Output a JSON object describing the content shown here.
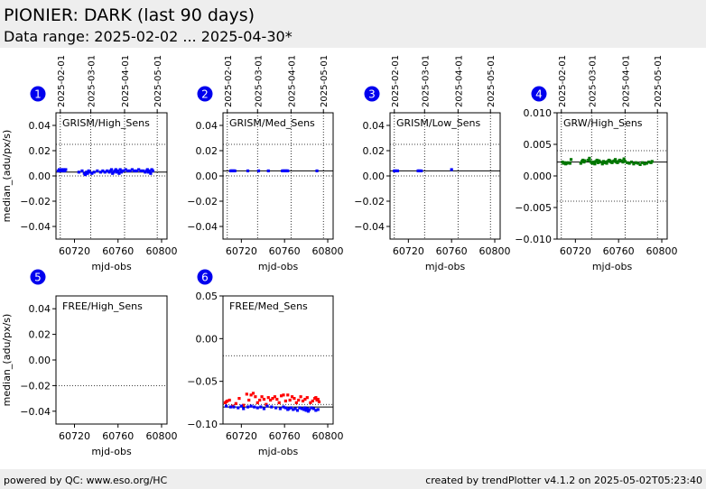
{
  "header": {
    "title": "PIONIER: DARK (last 90 days)",
    "subtitle": "Data range: 2025-02-02 ... 2025-04-30*"
  },
  "footer": {
    "left": "powered by QC: www.eso.org/HC",
    "right": "created by trendPlotter v4.1.2 on 2025-05-02T05:23:40"
  },
  "colors": {
    "badge": "#0000ee",
    "blue": "#0000ff",
    "green": "#007700",
    "red": "#ff0000",
    "header_bg": "#eeeeee"
  },
  "chart_data": [
    {
      "type": "scatter",
      "id": 1,
      "label": "GRISM/High_Sens",
      "xlabel": "mjd-obs",
      "ylabel": "median_(adu/px/s)",
      "xlim": [
        60703,
        60805
      ],
      "ylim": [
        -0.05,
        0.05
      ],
      "xticks": [
        60720,
        60760,
        60800
      ],
      "xtick_labels": [
        "60720",
        "60760",
        "60800"
      ],
      "yticks": [
        0.04,
        0.02,
        0.0,
        -0.02,
        -0.04
      ],
      "ytick_labels": [
        "0.04",
        "0.02",
        "0.00",
        "−0.02",
        "−0.04"
      ],
      "date_ticks": [
        "2025-02-01",
        "2025-03-01",
        "2025-04-01",
        "2025-05-01"
      ],
      "date_mjd": [
        60707,
        60735,
        60766,
        60796
      ],
      "ref_line": 0.003,
      "dotted_lines": [
        0.025,
        0.0
      ],
      "series": [
        {
          "color": "blue",
          "x": [
            60705,
            60706,
            60707,
            60708,
            60709,
            60710,
            60711,
            60712,
            60724,
            60727,
            60729,
            60730,
            60731,
            60732,
            60733,
            60734,
            60736,
            60738,
            60741,
            60744,
            60746,
            60748,
            60750,
            60752,
            60753,
            60754,
            60755,
            60756,
            60757,
            60758,
            60759,
            60760,
            60761,
            60762,
            60763,
            60764,
            60765,
            60767,
            60769,
            60771,
            60773,
            60775,
            60777,
            60779,
            60781,
            60783,
            60785,
            60786,
            60787,
            60788,
            60789,
            60790,
            60791,
            60792
          ],
          "y": [
            0.004,
            0.005,
            0.004,
            0.005,
            0.004,
            0.005,
            0.004,
            0.005,
            0.003,
            0.004,
            0.002,
            0.001,
            0.003,
            0.002,
            0.004,
            0.003,
            0.002,
            0.003,
            0.004,
            0.003,
            0.004,
            0.003,
            0.004,
            0.003,
            0.004,
            0.005,
            0.002,
            0.003,
            0.004,
            0.005,
            0.003,
            0.004,
            0.002,
            0.005,
            0.003,
            0.004,
            0.004,
            0.005,
            0.004,
            0.004,
            0.005,
            0.004,
            0.004,
            0.005,
            0.004,
            0.004,
            0.003,
            0.004,
            0.005,
            0.003,
            0.004,
            0.002,
            0.005,
            0.004
          ]
        }
      ]
    },
    {
      "type": "scatter",
      "id": 2,
      "label": "GRISM/Med_Sens",
      "xlabel": "mjd-obs",
      "ylabel": "",
      "xlim": [
        60703,
        60805
      ],
      "ylim": [
        -0.05,
        0.05
      ],
      "xticks": [
        60720,
        60760,
        60800
      ],
      "xtick_labels": [
        "60720",
        "60760",
        "60800"
      ],
      "yticks": [
        0.04,
        0.02,
        0.0,
        -0.02,
        -0.04
      ],
      "ytick_labels": [
        "0.04",
        "0.02",
        "0.00",
        "−0.02",
        "−0.04"
      ],
      "date_ticks": [
        "2025-02-01",
        "2025-03-01",
        "2025-04-01",
        "2025-05-01"
      ],
      "date_mjd": [
        60707,
        60735,
        60766,
        60796
      ],
      "ref_line": 0.004,
      "dotted_lines": [
        0.025,
        0.0
      ],
      "series": [
        {
          "color": "blue",
          "x": [
            60710,
            60711,
            60712,
            60713,
            60714,
            60726,
            60736,
            60745,
            60758,
            60759,
            60760,
            60761,
            60762,
            60763,
            60790
          ],
          "y": [
            0.004,
            0.004,
            0.004,
            0.004,
            0.004,
            0.004,
            0.004,
            0.004,
            0.004,
            0.004,
            0.004,
            0.004,
            0.004,
            0.004,
            0.004
          ]
        }
      ]
    },
    {
      "type": "scatter",
      "id": 3,
      "label": "GRISM/Low_Sens",
      "xlabel": "mjd-obs",
      "ylabel": "",
      "xlim": [
        60703,
        60805
      ],
      "ylim": [
        -0.05,
        0.05
      ],
      "xticks": [
        60720,
        60760,
        60800
      ],
      "xtick_labels": [
        "60720",
        "60760",
        "60800"
      ],
      "yticks": [
        0.04,
        0.02,
        0.0,
        -0.02,
        -0.04
      ],
      "ytick_labels": [
        "0.04",
        "0.02",
        "0.00",
        "−0.02",
        "−0.04"
      ],
      "date_ticks": [
        "2025-02-01",
        "2025-03-01",
        "2025-04-01",
        "2025-05-01"
      ],
      "date_mjd": [
        60707,
        60735,
        60766,
        60796
      ],
      "ref_line": 0.004,
      "dotted_lines": [
        0.025,
        0.0
      ],
      "series": [
        {
          "color": "blue",
          "x": [
            60707,
            60708,
            60710,
            60729,
            60730,
            60732,
            60760
          ],
          "y": [
            0.004,
            0.004,
            0.004,
            0.004,
            0.004,
            0.004,
            0.005
          ]
        }
      ]
    },
    {
      "type": "scatter",
      "id": 4,
      "label": "GRW/High_Sens",
      "xlabel": "mjd-obs",
      "ylabel": "",
      "xlim": [
        60703,
        60805
      ],
      "ylim": [
        -0.01,
        0.01
      ],
      "xticks": [
        60720,
        60760,
        60800
      ],
      "xtick_labels": [
        "60720",
        "60760",
        "60800"
      ],
      "yticks": [
        0.01,
        0.005,
        0.0,
        -0.005,
        -0.01
      ],
      "ytick_labels": [
        "0.010",
        "0.005",
        "0.000",
        "−0.005",
        "−0.010"
      ],
      "date_ticks": [
        "2025-02-01",
        "2025-03-01",
        "2025-04-01",
        "2025-05-01"
      ],
      "date_mjd": [
        60707,
        60735,
        60766,
        60796
      ],
      "ref_line": 0.0022,
      "dotted_lines": [
        0.004,
        -0.004
      ],
      "series": [
        {
          "color": "green",
          "x": [
            60708,
            60709,
            60710,
            60711,
            60712,
            60713,
            60715,
            60716,
            60725,
            60726,
            60727,
            60728,
            60729,
            60732,
            60733,
            60734,
            60735,
            60736,
            60737,
            60738,
            60739,
            60740,
            60741,
            60742,
            60743,
            60745,
            60746,
            60747,
            60748,
            60749,
            60750,
            60751,
            60752,
            60753,
            60754,
            60755,
            60756,
            60757,
            60758,
            60759,
            60760,
            60761,
            60763,
            60764,
            60765,
            60766,
            60768,
            60770,
            60772,
            60774,
            60776,
            60778,
            60780,
            60782,
            60784,
            60786,
            60788,
            60790,
            60791
          ],
          "y": [
            0.0022,
            0.002,
            0.0021,
            0.0019,
            0.002,
            0.0021,
            0.002,
            0.0026,
            0.002,
            0.0023,
            0.0025,
            0.0022,
            0.0024,
            0.0025,
            0.0028,
            0.0023,
            0.0021,
            0.002,
            0.0022,
            0.0019,
            0.0023,
            0.0025,
            0.0021,
            0.0024,
            0.0022,
            0.0019,
            0.0023,
            0.0021,
            0.0022,
            0.002,
            0.0023,
            0.0025,
            0.0024,
            0.0022,
            0.0021,
            0.0023,
            0.0024,
            0.0026,
            0.0022,
            0.0021,
            0.0023,
            0.0025,
            0.0024,
            0.0022,
            0.0027,
            0.0023,
            0.0021,
            0.002,
            0.0022,
            0.0019,
            0.0021,
            0.002,
            0.0018,
            0.0021,
            0.0019,
            0.002,
            0.0022,
            0.0021,
            0.0023
          ]
        }
      ]
    },
    {
      "type": "scatter",
      "id": 5,
      "label": "FREE/High_Sens",
      "xlabel": "mjd-obs",
      "ylabel": "median_(adu/px/s)",
      "xlim": [
        60703,
        60805
      ],
      "ylim": [
        -0.05,
        0.05
      ],
      "xticks": [
        60720,
        60760,
        60800
      ],
      "xtick_labels": [
        "60720",
        "60760",
        "60800"
      ],
      "yticks": [
        0.04,
        0.02,
        0.0,
        -0.02,
        -0.04
      ],
      "ytick_labels": [
        "0.04",
        "0.02",
        "0.00",
        "−0.02",
        "−0.04"
      ],
      "date_ticks": [],
      "date_mjd": [],
      "ref_line": null,
      "dotted_lines": [
        -0.02
      ],
      "series": []
    },
    {
      "type": "scatter",
      "id": 6,
      "label": "FREE/Med_Sens",
      "xlabel": "mjd-obs",
      "ylabel": "",
      "xlim": [
        60703,
        60805
      ],
      "ylim": [
        -0.1,
        0.05
      ],
      "xticks": [
        60720,
        60760,
        60800
      ],
      "xtick_labels": [
        "60720",
        "60760",
        "60800"
      ],
      "yticks": [
        0.05,
        0.0,
        -0.05,
        -0.1
      ],
      "ytick_labels": [
        "0.05",
        "0.00",
        "−0.05",
        "−0.10"
      ],
      "date_ticks": [],
      "date_mjd": [],
      "ref_line": -0.08,
      "dotted_lines": [
        -0.02,
        -0.077
      ],
      "series": [
        {
          "color": "red",
          "x": [
            60705,
            60706,
            60707,
            60709,
            60712,
            60715,
            60718,
            60722,
            60725,
            60727,
            60729,
            60731,
            60733,
            60735,
            60737,
            60739,
            60741,
            60743,
            60745,
            60747,
            60749,
            60751,
            60753,
            60755,
            60757,
            60759,
            60761,
            60763,
            60765,
            60767,
            60769,
            60771,
            60773,
            60775,
            60777,
            60779,
            60781,
            60784,
            60786,
            60788,
            60789,
            60790,
            60791,
            60792
          ],
          "y": [
            -0.075,
            -0.074,
            -0.073,
            -0.072,
            -0.079,
            -0.076,
            -0.07,
            -0.078,
            -0.065,
            -0.072,
            -0.066,
            -0.064,
            -0.068,
            -0.075,
            -0.072,
            -0.068,
            -0.071,
            -0.077,
            -0.069,
            -0.072,
            -0.07,
            -0.068,
            -0.071,
            -0.075,
            -0.067,
            -0.066,
            -0.073,
            -0.066,
            -0.072,
            -0.068,
            -0.07,
            -0.075,
            -0.072,
            -0.068,
            -0.073,
            -0.071,
            -0.069,
            -0.075,
            -0.073,
            -0.07,
            -0.069,
            -0.072,
            -0.071,
            -0.074
          ]
        },
        {
          "color": "blue",
          "x": [
            60706,
            60710,
            60713,
            60717,
            60720,
            60722,
            60726,
            60729,
            60732,
            60735,
            60738,
            60741,
            60744,
            60748,
            60752,
            60756,
            60759,
            60761,
            60763,
            60764,
            60766,
            60768,
            60770,
            60772,
            60774,
            60776,
            60778,
            60779,
            60780,
            60781,
            60782,
            60783,
            60785,
            60787,
            60789,
            60791
          ],
          "y": [
            -0.079,
            -0.08,
            -0.08,
            -0.081,
            -0.079,
            -0.082,
            -0.08,
            -0.079,
            -0.08,
            -0.081,
            -0.08,
            -0.082,
            -0.079,
            -0.08,
            -0.081,
            -0.082,
            -0.08,
            -0.081,
            -0.083,
            -0.082,
            -0.081,
            -0.083,
            -0.082,
            -0.084,
            -0.081,
            -0.082,
            -0.083,
            -0.081,
            -0.084,
            -0.082,
            -0.085,
            -0.083,
            -0.081,
            -0.082,
            -0.084,
            -0.083
          ]
        }
      ]
    }
  ]
}
